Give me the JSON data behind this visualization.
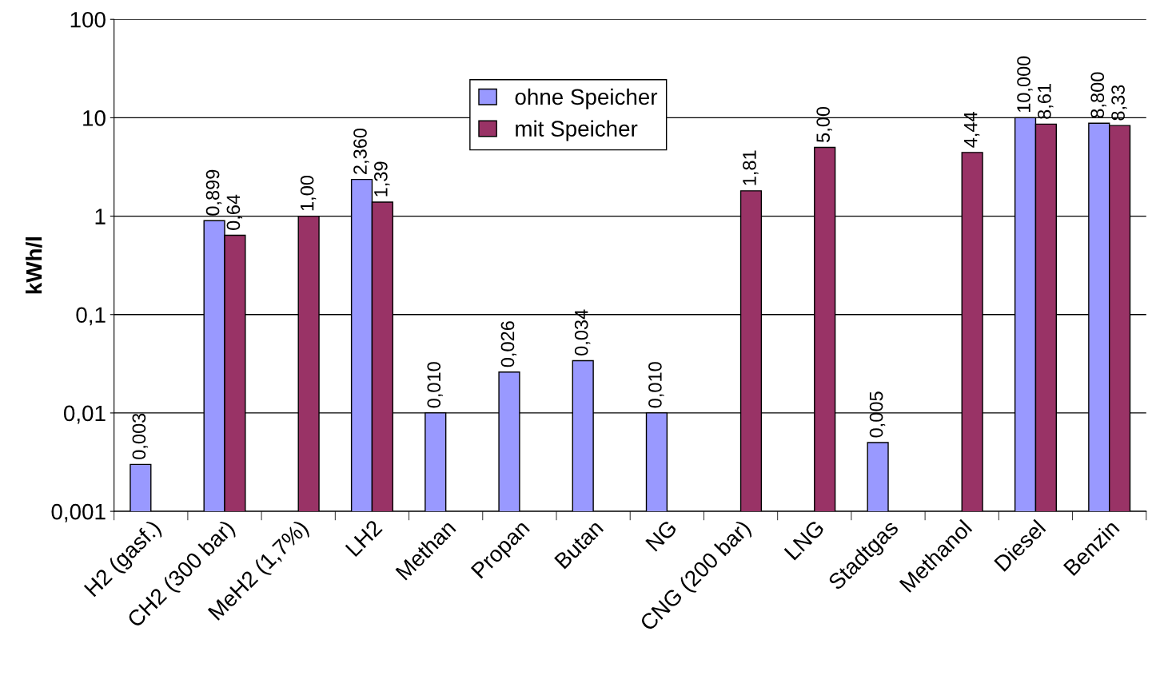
{
  "chart_data": {
    "type": "bar",
    "ylabel": "kWh/l",
    "categories": [
      "H2 (gasf.)",
      "CH2 (300 bar)",
      "MeH2 (1,7%)",
      "LH2",
      "Methan",
      "Propan",
      "Butan",
      "NG",
      "CNG (200 bar)",
      "LNG",
      "Stadtgas",
      "Methanol",
      "Diesel",
      "Benzin"
    ],
    "series": [
      {
        "name": "ohne Speicher",
        "color": "#9999ff",
        "values": [
          0.003,
          0.899,
          null,
          2.36,
          0.01,
          0.026,
          0.034,
          0.01,
          null,
          null,
          0.005,
          null,
          10.0,
          8.8
        ],
        "value_labels": [
          "0,003",
          "0,899",
          null,
          "2,360",
          "0,010",
          "0,026",
          "0,034",
          "0,010",
          null,
          null,
          "0,005",
          null,
          "10,000",
          "8,800"
        ]
      },
      {
        "name": "mit Speicher",
        "color": "#993366",
        "values": [
          null,
          0.64,
          1.0,
          1.39,
          null,
          null,
          null,
          null,
          1.81,
          5.0,
          null,
          4.44,
          8.61,
          8.33
        ],
        "value_labels": [
          null,
          "0,64",
          "1,00",
          "1,39",
          null,
          null,
          null,
          null,
          "1,81",
          "5,00",
          null,
          "4,44",
          "8,61",
          "8,33"
        ]
      }
    ],
    "log": "y",
    "ylim": [
      0.001,
      100
    ],
    "yticks": [
      {
        "value": 0.001,
        "label": "0,001"
      },
      {
        "value": 0.01,
        "label": "0,01"
      },
      {
        "value": 0.1,
        "label": "0,1"
      },
      1,
      10,
      100
    ],
    "grid": "y",
    "legend": "top"
  }
}
